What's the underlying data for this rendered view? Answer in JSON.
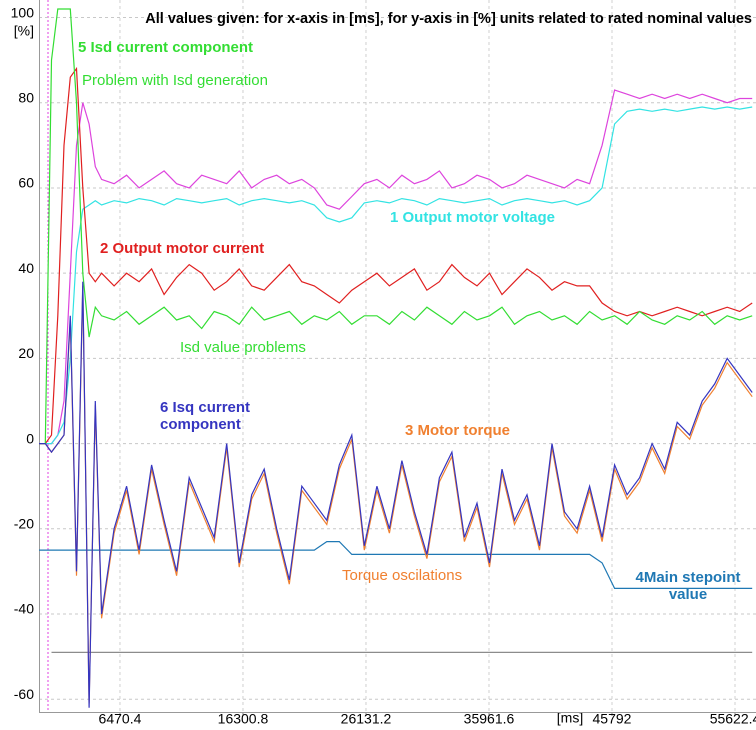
{
  "chart_data": {
    "type": "line",
    "title": "All values given: for x-axis in [ms], for y-axis in [%] units related to rated nominal values",
    "x_label": "[ms]",
    "y_label": "[%]",
    "xlim": [
      0,
      57300
    ],
    "ylim": [
      -63,
      102
    ],
    "xticks": [
      6470.4,
      16300.8,
      26131.2,
      35961.6,
      45792,
      55622.4
    ],
    "yticks": [
      -60,
      -40,
      -20,
      0,
      20,
      40,
      60,
      80,
      100
    ],
    "grid": true,
    "x": [
      0,
      500,
      1000,
      1500,
      2000,
      2500,
      3000,
      3500,
      4000,
      4500,
      5000,
      6000,
      7000,
      8000,
      9000,
      10000,
      11000,
      12000,
      13000,
      14000,
      15000,
      16000,
      17000,
      18000,
      19000,
      20000,
      21000,
      22000,
      23000,
      24000,
      25000,
      26000,
      27000,
      28000,
      29000,
      30000,
      31000,
      32000,
      33000,
      34000,
      35000,
      36000,
      37000,
      38000,
      39000,
      40000,
      41000,
      42000,
      43000,
      44000,
      45000,
      46000,
      47000,
      48000,
      49000,
      50000,
      51000,
      52000,
      53000,
      54000,
      55000,
      56000,
      57000
    ],
    "series": [
      {
        "name": "1 Output motor voltage",
        "color": "#33e3e3",
        "values": [
          0,
          0,
          0,
          2,
          5,
          20,
          45,
          55,
          56,
          57,
          56,
          57,
          56.5,
          57.5,
          57,
          56,
          57.5,
          57,
          56.5,
          57,
          57.5,
          56,
          57,
          57.5,
          57,
          56.5,
          57,
          56,
          53,
          52,
          53,
          56.5,
          57,
          56.5,
          57.5,
          57,
          56,
          57.5,
          57,
          56.5,
          57,
          57.5,
          56,
          57,
          57.5,
          57,
          56.5,
          57,
          56,
          57,
          60,
          75,
          78,
          78.5,
          78,
          78.5,
          78,
          78.5,
          79,
          78.5,
          79,
          78.5,
          79
        ]
      },
      {
        "name": "2 Output motor current",
        "color": "#e02020",
        "values": [
          0,
          0,
          2,
          30,
          70,
          86,
          88,
          60,
          40,
          38,
          40,
          37,
          40,
          38,
          41,
          35,
          39,
          42,
          40,
          36,
          38,
          41,
          37,
          36,
          39,
          42,
          38,
          37,
          35,
          33,
          36,
          38,
          40,
          37,
          39,
          41,
          36,
          38,
          42,
          39,
          37,
          40,
          35,
          38,
          41,
          39,
          36,
          38,
          37,
          37,
          33,
          31,
          30,
          31,
          30,
          31,
          32,
          31,
          30,
          31,
          32,
          31,
          33
        ]
      },
      {
        "name": "3 Motor torque",
        "color": "#f08030",
        "values": [
          0,
          0,
          -2,
          0,
          2,
          29,
          -31,
          37,
          -61,
          9,
          -41,
          -21,
          -11,
          -26,
          -6,
          -19,
          -31,
          -9,
          -16,
          -23,
          -1,
          -29,
          -13,
          -7,
          -21,
          -33,
          -11,
          -15,
          -19,
          -6,
          1,
          -25,
          -11,
          -21,
          -5,
          -17,
          -27,
          -9,
          -3,
          -23,
          -15,
          -29,
          -7,
          -19,
          -13,
          -25,
          -1,
          -17,
          -21,
          -11,
          -23,
          -6,
          -13,
          -9,
          -1,
          -7,
          4,
          1,
          9,
          13,
          19,
          15,
          11
        ]
      },
      {
        "name": "4Main stepoint value",
        "color": "#1f78b4",
        "values": [
          -25,
          -25,
          -25,
          -25,
          -25,
          -25,
          -25,
          -25,
          -25,
          -25,
          -25,
          -25,
          -25,
          -25,
          -25,
          -25,
          -25,
          -25,
          -25,
          -25,
          -25,
          -25,
          -25,
          -25,
          -25,
          -25,
          -25,
          -25,
          -23,
          -23,
          -26,
          -26,
          -26,
          -26,
          -26,
          -26,
          -26,
          -26,
          -26,
          -26,
          -26,
          -26,
          -26,
          -26,
          -26,
          -26,
          -26,
          -26,
          -26,
          -26,
          -28,
          -34,
          -34,
          -34,
          -34,
          -34,
          -34,
          -34,
          -34,
          -34,
          -34,
          -34,
          -34
        ]
      },
      {
        "name": "5 Isd current component",
        "color": "#33dd33",
        "values": [
          0,
          0,
          90,
          102,
          102,
          102,
          80,
          40,
          25,
          32,
          30,
          29,
          31,
          28,
          30,
          32,
          29,
          30,
          27,
          31,
          30,
          28,
          32,
          29,
          30,
          31,
          28,
          30,
          29,
          31,
          28,
          30,
          30,
          28,
          31,
          29,
          32,
          30,
          28,
          31,
          29,
          30,
          32,
          28,
          30,
          31,
          29,
          30,
          28,
          31,
          29,
          30,
          28,
          31,
          29,
          28,
          30,
          29,
          31,
          28,
          30,
          29,
          30
        ]
      },
      {
        "name": "6 Isq current component",
        "color": "#3535c0",
        "values": [
          0,
          0,
          -2,
          0,
          2,
          30,
          -30,
          38,
          -62,
          10,
          -40,
          -20,
          -10,
          -25,
          -5,
          -18,
          -30,
          -8,
          -15,
          -22,
          0,
          -28,
          -12,
          -6,
          -20,
          -32,
          -10,
          -14,
          -18,
          -5,
          2,
          -24,
          -10,
          -20,
          -4,
          -16,
          -26,
          -8,
          -2,
          -22,
          -14,
          -28,
          -6,
          -18,
          -12,
          -24,
          0,
          -16,
          -20,
          -10,
          -22,
          -5,
          -12,
          -8,
          0,
          -6,
          5,
          2,
          10,
          14,
          20,
          16,
          12
        ]
      },
      {
        "color": "#dd44dd",
        "values": [
          0,
          0,
          0,
          2,
          10,
          40,
          70,
          80,
          75,
          65,
          62,
          61,
          63,
          60,
          62,
          64,
          61,
          60,
          63,
          62,
          61,
          64,
          60,
          62,
          63,
          61,
          62,
          60,
          56,
          55,
          58,
          61,
          62,
          60,
          63,
          61,
          62,
          64,
          60,
          61,
          63,
          62,
          60,
          61,
          63,
          62,
          61,
          60,
          62,
          61,
          70,
          83,
          82,
          81,
          82,
          81,
          82,
          81,
          82,
          81,
          80,
          81,
          81
        ]
      },
      {
        "color": "#8c8c8c",
        "values": [
          null,
          null,
          -49,
          -49,
          -49,
          -49,
          -49,
          -49,
          -49,
          -49,
          -49,
          -49,
          -49,
          -49,
          -49,
          -49,
          -49,
          -49,
          -49,
          -49,
          -49,
          -49,
          -49,
          -49,
          -49,
          -49,
          -49,
          -49,
          -49,
          -49,
          -49,
          -49,
          -49,
          -49,
          -49,
          -49,
          -49,
          -49,
          -49,
          -49,
          -49,
          -49,
          -49,
          -49,
          -49,
          -49,
          -49,
          -49,
          -49,
          -49,
          -49,
          -49,
          -49,
          -49,
          -49,
          -49,
          -49,
          -49,
          -49,
          -49,
          -49,
          -49,
          -49
        ]
      }
    ],
    "annotations": [
      "Problem with Isd generation",
      "Isd value problems",
      "Torque oscilations"
    ]
  }
}
